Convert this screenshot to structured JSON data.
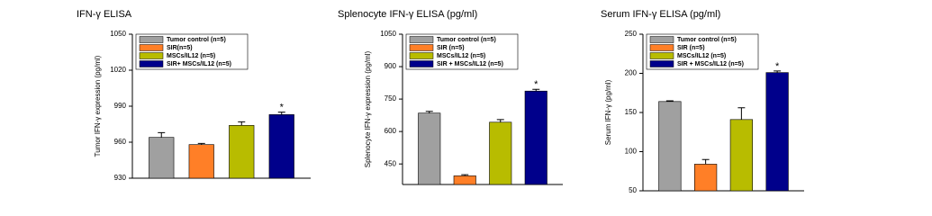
{
  "chart_data": [
    {
      "type": "bar",
      "title": "IFN-γ ELISA",
      "y_label": "Tumor IFN-γ expression (pg/ml)",
      "categories": [
        "Tumor control (n=5)",
        "SIR(n=5)",
        "MSCs/IL12 (n=5)",
        "SIR+ MSCs/IL12 (n=5)"
      ],
      "values": [
        964,
        958,
        974,
        983
      ],
      "errors": [
        4,
        1,
        3,
        2
      ],
      "colors": [
        "#a0a0a0",
        "#ff7f27",
        "#b8bc00",
        "#00008b"
      ],
      "ylim": [
        930,
        1050
      ],
      "yticks": [
        930,
        960,
        990,
        1020,
        1050
      ],
      "annotation": "*"
    },
    {
      "type": "bar",
      "title": "Splenocyte IFN-γ ELISA (pg/ml)",
      "y_label": "Splenocyte IFN-γ expression (pg/ml)",
      "categories": [
        "Tumor control (n=5)",
        "SIR (n=5)",
        "MSCs/IL12 (n=5)",
        "SIR + MSCs/IL12 (n=5)"
      ],
      "values": [
        685,
        395,
        643,
        787
      ],
      "errors": [
        8,
        5,
        12,
        8
      ],
      "colors": [
        "#a0a0a0",
        "#ff7f27",
        "#b8bc00",
        "#00008b"
      ],
      "ylim": [
        355,
        1050
      ],
      "yticks": [
        450,
        600,
        750,
        900,
        1050
      ],
      "annotation": "*"
    },
    {
      "type": "bar",
      "title": "Serum IFN-γ ELISA (pg/ml)",
      "y_label": "Serum IFN-γ (pg/ml)",
      "categories": [
        "Tumor control (n=5)",
        "SIR (n=5)",
        "MSCs/IL12 (n=5)",
        "SIR + MSCs/IL12 (n=5)"
      ],
      "values": [
        164,
        84,
        141,
        201
      ],
      "errors": [
        1,
        6,
        15,
        2
      ],
      "colors": [
        "#a0a0a0",
        "#ff7f27",
        "#b8bc00",
        "#00008b"
      ],
      "ylim": [
        50,
        250
      ],
      "yticks": [
        50,
        100,
        150,
        200,
        250
      ],
      "annotation": "*"
    }
  ]
}
